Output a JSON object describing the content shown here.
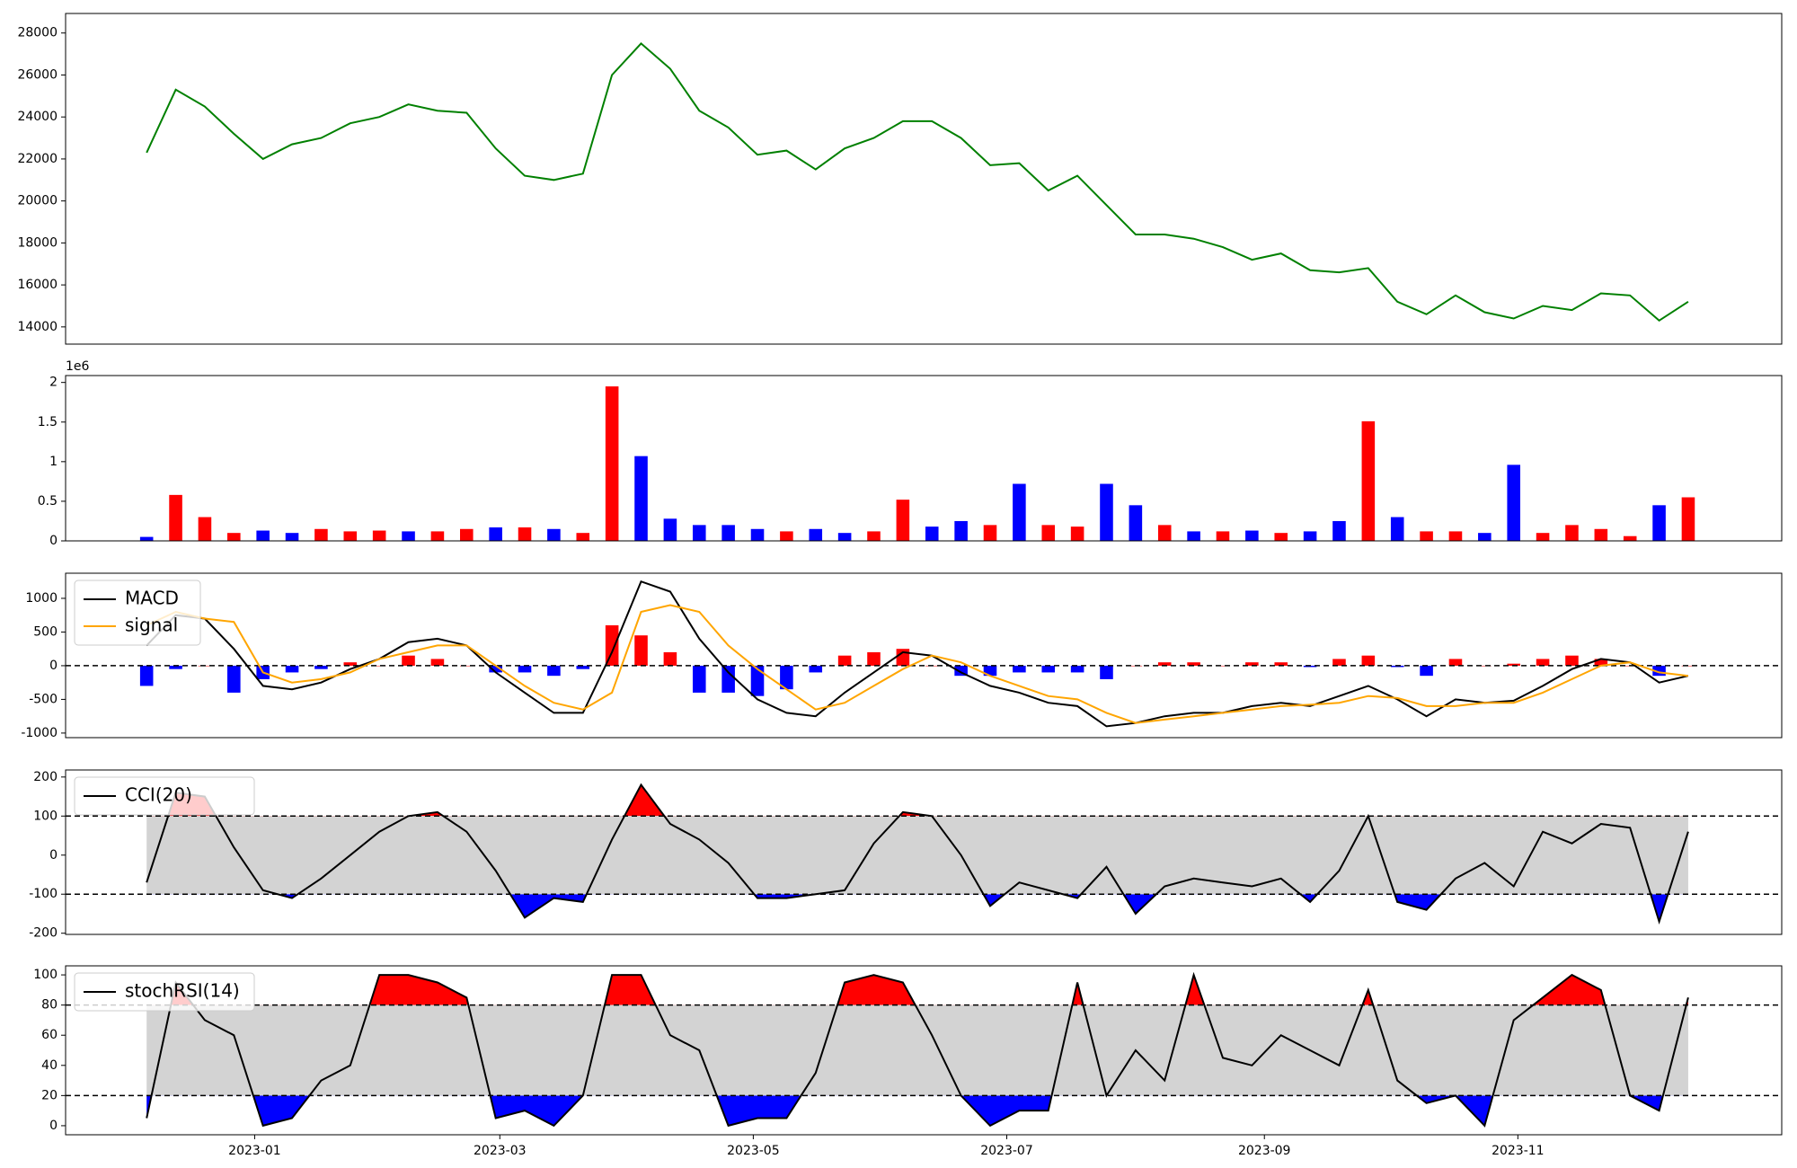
{
  "chart_data": [
    {
      "type": "line",
      "x": [
        -26,
        -19,
        -12,
        -5,
        2,
        9,
        16,
        23,
        30,
        37,
        44,
        51,
        58,
        65,
        72,
        79,
        86,
        93,
        100,
        107,
        114,
        121,
        128,
        135,
        142,
        149,
        156,
        163,
        170,
        177,
        184,
        191,
        198,
        205,
        212,
        219,
        226,
        233,
        240,
        247,
        254,
        261,
        268,
        275,
        282,
        289,
        296,
        303,
        310,
        317,
        324,
        331,
        338,
        345
      ],
      "xlim": [
        -45.5,
        367.5
      ],
      "ylim": [
        13180,
        28930
      ],
      "yticks": [
        14000,
        16000,
        18000,
        20000,
        22000,
        24000,
        26000,
        28000
      ],
      "series": [
        {
          "color": "#008000",
          "values": [
            22300,
            25300,
            24500,
            23200,
            22000,
            22700,
            23000,
            23700,
            24000,
            24600,
            24300,
            24200,
            22500,
            21200,
            21000,
            21300,
            26000,
            27500,
            26300,
            24300,
            23500,
            22200,
            22400,
            21500,
            22500,
            23000,
            23800,
            23800,
            23000,
            21700,
            21800,
            20500,
            21200,
            19800,
            18400,
            18400,
            18200,
            17800,
            17200,
            17500,
            16700,
            16600,
            16800,
            15200,
            14600,
            15500,
            14700,
            14400,
            15000,
            14800,
            15600,
            15500,
            14300,
            15200
          ]
        }
      ]
    },
    {
      "type": "bar",
      "x": [
        -26,
        -19,
        -12,
        -5,
        2,
        9,
        16,
        23,
        30,
        37,
        44,
        51,
        58,
        65,
        72,
        79,
        86,
        93,
        100,
        107,
        114,
        121,
        128,
        135,
        142,
        149,
        156,
        163,
        170,
        177,
        184,
        191,
        198,
        205,
        212,
        219,
        226,
        233,
        240,
        247,
        254,
        261,
        268,
        275,
        282,
        289,
        296,
        303,
        310,
        317,
        324,
        331,
        338,
        345
      ],
      "xlim": [
        -45.5,
        367.5
      ],
      "ylim": [
        0,
        2.087
      ],
      "yticks": [
        0.0,
        0.5,
        1.0,
        1.5,
        2.0
      ],
      "y_offset_label": "1e6",
      "values": [
        0.05,
        0.58,
        0.3,
        0.1,
        0.13,
        0.1,
        0.15,
        0.12,
        0.13,
        0.12,
        0.12,
        0.15,
        0.17,
        0.17,
        0.15,
        0.1,
        1.95,
        1.07,
        0.28,
        0.2,
        0.2,
        0.15,
        0.12,
        0.15,
        0.1,
        0.12,
        0.52,
        0.18,
        0.25,
        0.2,
        0.72,
        0.2,
        0.18,
        0.72,
        0.45,
        0.2,
        0.12,
        0.12,
        0.13,
        0.1,
        0.12,
        0.25,
        1.51,
        0.3,
        0.12,
        0.12,
        0.1,
        0.96,
        0.1,
        0.2,
        0.15,
        0.06,
        0.45,
        0.55
      ],
      "colors": [
        "#0000ff",
        "#ff0000",
        "#ff0000",
        "#ff0000",
        "#0000ff",
        "#0000ff",
        "#ff0000",
        "#ff0000",
        "#ff0000",
        "#0000ff",
        "#ff0000",
        "#ff0000",
        "#0000ff",
        "#ff0000",
        "#0000ff",
        "#ff0000",
        "#ff0000",
        "#0000ff",
        "#0000ff",
        "#0000ff",
        "#0000ff",
        "#0000ff",
        "#ff0000",
        "#0000ff",
        "#0000ff",
        "#ff0000",
        "#ff0000",
        "#0000ff",
        "#0000ff",
        "#ff0000",
        "#0000ff",
        "#ff0000",
        "#ff0000",
        "#0000ff",
        "#0000ff",
        "#ff0000",
        "#0000ff",
        "#ff0000",
        "#0000ff",
        "#ff0000",
        "#0000ff",
        "#0000ff",
        "#ff0000",
        "#0000ff",
        "#ff0000",
        "#ff0000",
        "#0000ff",
        "#0000ff",
        "#ff0000",
        "#ff0000",
        "#ff0000",
        "#ff0000",
        "#0000ff",
        "#ff0000"
      ]
    },
    {
      "type": "macd",
      "x": [
        -26,
        -19,
        -12,
        -5,
        2,
        9,
        16,
        23,
        30,
        37,
        44,
        51,
        58,
        65,
        72,
        79,
        86,
        93,
        100,
        107,
        114,
        121,
        128,
        135,
        142,
        149,
        156,
        163,
        170,
        177,
        184,
        191,
        198,
        205,
        212,
        219,
        226,
        233,
        240,
        247,
        254,
        261,
        268,
        275,
        282,
        289,
        296,
        303,
        310,
        317,
        324,
        331,
        338,
        345
      ],
      "xlim": [
        -45.5,
        367.5
      ],
      "ylim": [
        -1068,
        1373
      ],
      "yticks": [
        -1000,
        -500,
        0,
        500,
        1000
      ],
      "hline": 0,
      "legend": "upper left",
      "pos_color": "#ff0000",
      "neg_color": "#0000ff",
      "series": [
        {
          "name": "MACD",
          "color": "#000000",
          "values": [
            300,
            750,
            700,
            250,
            -300,
            -350,
            -250,
            -50,
            100,
            350,
            400,
            300,
            -100,
            -400,
            -700,
            -700,
            200,
            1250,
            1100,
            400,
            -100,
            -500,
            -700,
            -750,
            -400,
            -100,
            200,
            150,
            -100,
            -300,
            -400,
            -550,
            -600,
            -900,
            -850,
            -750,
            -700,
            -700,
            -600,
            -550,
            -600,
            -450,
            -300,
            -500,
            -750,
            -500,
            -550,
            -520,
            -300,
            -50,
            100,
            50,
            -250,
            -150
          ]
        },
        {
          "name": "signal",
          "color": "#ffa500",
          "values": [
            600,
            800,
            700,
            650,
            -100,
            -250,
            -200,
            -100,
            100,
            200,
            300,
            300,
            0,
            -300,
            -550,
            -650,
            -400,
            800,
            900,
            800,
            300,
            -50,
            -350,
            -650,
            -550,
            -300,
            -50,
            150,
            50,
            -150,
            -300,
            -450,
            -500,
            -700,
            -850,
            -800,
            -750,
            -700,
            -650,
            -600,
            -580,
            -550,
            -450,
            -480,
            -600,
            -600,
            -550,
            -550,
            -400,
            -200,
            0,
            50,
            -100,
            -150
          ]
        }
      ],
      "histogram": [
        -300,
        -50,
        0,
        -400,
        -200,
        -100,
        -50,
        50,
        0,
        150,
        100,
        0,
        -100,
        -100,
        -150,
        -50,
        600,
        450,
        200,
        -400,
        -400,
        -450,
        -350,
        -100,
        150,
        200,
        250,
        0,
        -150,
        -150,
        -100,
        -100,
        -100,
        -200,
        0,
        50,
        50,
        0,
        50,
        50,
        -20,
        100,
        150,
        -20,
        -150,
        100,
        0,
        30,
        100,
        150,
        100,
        0,
        -150,
        0
      ]
    },
    {
      "type": "band",
      "x": [
        -26,
        -19,
        -12,
        -5,
        2,
        9,
        16,
        23,
        30,
        37,
        44,
        51,
        58,
        65,
        72,
        79,
        86,
        93,
        100,
        107,
        114,
        121,
        128,
        135,
        142,
        149,
        156,
        163,
        170,
        177,
        184,
        191,
        198,
        205,
        212,
        219,
        226,
        233,
        240,
        247,
        254,
        261,
        268,
        275,
        282,
        289,
        296,
        303,
        310,
        317,
        324,
        331,
        338,
        345
      ],
      "xlim": [
        -45.5,
        367.5
      ],
      "ylim": [
        -203,
        218
      ],
      "yticks": [
        -200,
        -100,
        0,
        100,
        200
      ],
      "bands": [
        100,
        -100
      ],
      "legend": "upper left",
      "band_color": "#d3d3d3",
      "upper_color": "#ff0000",
      "lower_color": "#0000ff",
      "series": [
        {
          "name": "CCI(20)",
          "color": "#000000",
          "values": [
            -70,
            160,
            150,
            20,
            -90,
            -110,
            -60,
            0,
            60,
            100,
            110,
            60,
            -40,
            -160,
            -110,
            -120,
            40,
            180,
            80,
            40,
            -20,
            -110,
            -110,
            -100,
            -90,
            30,
            110,
            100,
            0,
            -130,
            -70,
            -90,
            -110,
            -30,
            -150,
            -80,
            -60,
            -70,
            -80,
            -60,
            -120,
            -40,
            100,
            -120,
            -140,
            -60,
            -20,
            -80,
            60,
            30,
            80,
            70,
            -170,
            60
          ]
        }
      ]
    },
    {
      "type": "band",
      "x": [
        -26,
        -19,
        -12,
        -5,
        2,
        9,
        16,
        23,
        30,
        37,
        44,
        51,
        58,
        65,
        72,
        79,
        86,
        93,
        100,
        107,
        114,
        121,
        128,
        135,
        142,
        149,
        156,
        163,
        170,
        177,
        184,
        191,
        198,
        205,
        212,
        219,
        226,
        233,
        240,
        247,
        254,
        261,
        268,
        275,
        282,
        289,
        296,
        303,
        310,
        317,
        324,
        331,
        338,
        345
      ],
      "xlim": [
        -45.5,
        367.5
      ],
      "ylim": [
        -6,
        106
      ],
      "yticks": [
        0,
        20,
        40,
        60,
        80,
        100
      ],
      "xticks": [
        {
          "value": 0,
          "label": "2023-01"
        },
        {
          "value": 59,
          "label": "2023-03"
        },
        {
          "value": 120,
          "label": "2023-05"
        },
        {
          "value": 181,
          "label": "2023-07"
        },
        {
          "value": 243,
          "label": "2023-09"
        },
        {
          "value": 304,
          "label": "2023-11"
        }
      ],
      "bands": [
        80,
        20
      ],
      "legend": "upper left",
      "band_color": "#d3d3d3",
      "upper_color": "#ff0000",
      "lower_color": "#0000ff",
      "series": [
        {
          "name": "stochRSI(14)",
          "color": "#000000",
          "values": [
            5,
            95,
            70,
            60,
            0,
            5,
            30,
            40,
            100,
            100,
            95,
            85,
            5,
            10,
            0,
            20,
            100,
            100,
            60,
            50,
            0,
            5,
            5,
            35,
            95,
            100,
            95,
            60,
            20,
            0,
            10,
            10,
            95,
            20,
            50,
            30,
            100,
            45,
            40,
            60,
            50,
            40,
            90,
            30,
            15,
            20,
            0,
            70,
            85,
            100,
            90,
            20,
            10,
            85
          ]
        }
      ]
    }
  ]
}
